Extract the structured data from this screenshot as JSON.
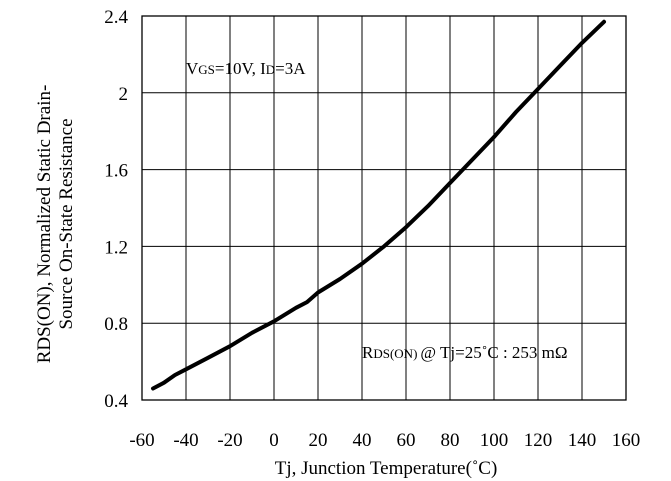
{
  "chart_data": {
    "type": "line",
    "title": "",
    "xlabel": "Tj, Junction Temperature(˚C)",
    "ylabel_line1": "RDS(ON), Normalized Static Drain-",
    "ylabel_line2": "Source On-State Resistance",
    "xlim": [
      -60,
      160
    ],
    "ylim": [
      0.4,
      2.4
    ],
    "x_ticks": [
      -60,
      -40,
      -20,
      0,
      20,
      40,
      60,
      80,
      100,
      120,
      140,
      160
    ],
    "y_ticks": [
      0.4,
      0.8,
      1.2,
      1.6,
      2.0,
      2.4
    ],
    "y_tick_labels": [
      "0.4",
      "0.8",
      "1.2",
      "1.6",
      "2",
      "2.4"
    ],
    "grid": true,
    "series": [
      {
        "x": [
          -55,
          -50,
          -45,
          -40,
          -30,
          -20,
          -10,
          0,
          10,
          15,
          20,
          30,
          40,
          50,
          60,
          70,
          80,
          90,
          100,
          110,
          120,
          130,
          140,
          150
        ],
        "y": [
          0.46,
          0.49,
          0.53,
          0.56,
          0.62,
          0.68,
          0.75,
          0.81,
          0.88,
          0.91,
          0.96,
          1.03,
          1.11,
          1.2,
          1.3,
          1.41,
          1.53,
          1.65,
          1.77,
          1.9,
          2.02,
          2.14,
          2.26,
          2.37
        ]
      }
    ],
    "annotations": {
      "conditions": {
        "v": "V",
        "v_sub": "GS",
        "v_rest": "=10V, I",
        "i_sub": "D",
        "i_rest": "=3A"
      },
      "reference": {
        "r": "R",
        "r_sub": "DS(ON)",
        "rest": "@ Tj=25˚C : 253 mΩ"
      }
    }
  }
}
